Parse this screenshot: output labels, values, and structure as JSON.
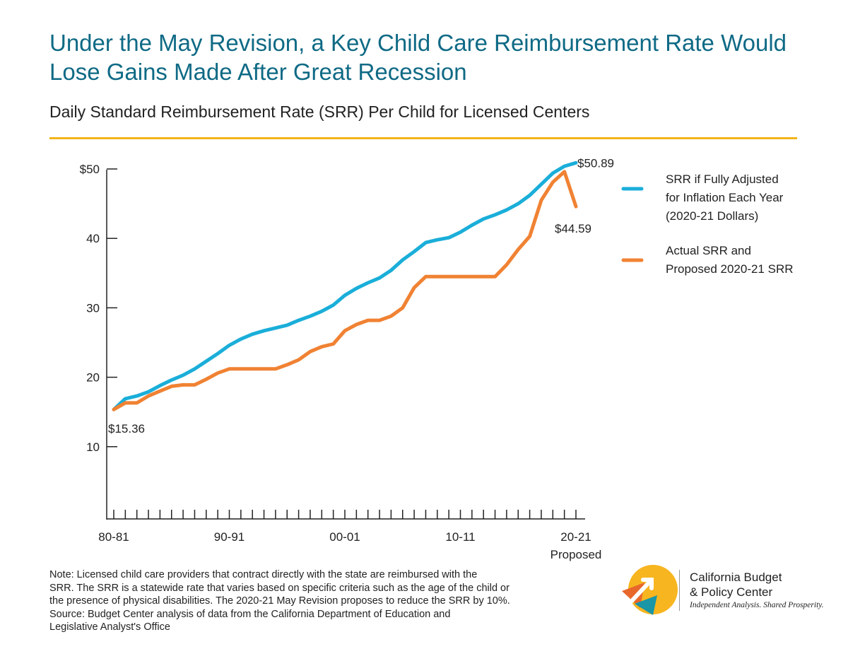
{
  "title": "Under the May Revision, a Key Child Care Reimbursement Rate Would Lose Gains Made After Great Recession",
  "subtitle": "Daily Standard Reimbursement Rate (SRR) Per Child for Licensed Centers",
  "colors": {
    "title": "#0f6a85",
    "rule": "#f3b51b",
    "inflation": "#1aaed9",
    "actual": "#f08233"
  },
  "chart_data": {
    "type": "line",
    "x_ticks": [
      "80-81",
      "90-91",
      "00-01",
      "10-11",
      "20-21"
    ],
    "x_tick_sublabel": "Proposed",
    "y_ticks": [
      "$50",
      "40",
      "30",
      "20",
      "10"
    ],
    "ylim": [
      0,
      52
    ],
    "x": [
      "80-81",
      "81-82",
      "82-83",
      "83-84",
      "84-85",
      "85-86",
      "86-87",
      "87-88",
      "88-89",
      "89-90",
      "90-91",
      "91-92",
      "92-93",
      "93-94",
      "94-95",
      "95-96",
      "96-97",
      "97-98",
      "98-99",
      "99-00",
      "00-01",
      "01-02",
      "02-03",
      "03-04",
      "04-05",
      "05-06",
      "06-07",
      "07-08",
      "08-09",
      "09-10",
      "10-11",
      "11-12",
      "12-13",
      "13-14",
      "14-15",
      "15-16",
      "16-17",
      "17-18",
      "18-19",
      "19-20",
      "20-21"
    ],
    "series": [
      {
        "name": "SRR if Fully Adjusted for Inflation Each Year (2020-21 Dollars)",
        "legend_lines": [
          "SRR if Fully Adjusted",
          "for Inflation Each Year",
          "(2020-21 Dollars)"
        ],
        "color": "#1aaed9",
        "values": [
          15.36,
          16.9,
          17.3,
          17.9,
          18.8,
          19.6,
          20.3,
          21.2,
          22.3,
          23.4,
          24.6,
          25.5,
          26.2,
          26.7,
          27.1,
          27.5,
          28.2,
          28.8,
          29.5,
          30.4,
          31.8,
          32.8,
          33.6,
          34.3,
          35.4,
          36.9,
          38.1,
          39.4,
          39.8,
          40.1,
          40.9,
          41.9,
          42.8,
          43.4,
          44.1,
          45.0,
          46.2,
          47.8,
          49.4,
          50.4,
          50.89
        ]
      },
      {
        "name": "Actual SRR and Proposed 2020-21 SRR",
        "legend_lines": [
          "Actual SRR and",
          "Proposed 2020-21 SRR"
        ],
        "color": "#f08233",
        "values": [
          15.36,
          16.3,
          16.3,
          17.3,
          18.0,
          18.7,
          18.9,
          18.9,
          19.7,
          20.6,
          21.2,
          21.2,
          21.2,
          21.2,
          21.2,
          21.8,
          22.5,
          23.7,
          24.4,
          24.8,
          26.7,
          27.6,
          28.2,
          28.2,
          28.8,
          30.0,
          32.9,
          34.5,
          34.5,
          34.5,
          34.5,
          34.5,
          34.5,
          34.5,
          36.2,
          38.4,
          40.3,
          45.5,
          48.1,
          49.6,
          44.59
        ]
      }
    ],
    "annotations": [
      "$15.36",
      "$50.89",
      "$44.59"
    ],
    "title": "Daily Standard Reimbursement Rate (SRR) Per Child for Licensed Centers"
  },
  "note_lines": [
    "Note: Licensed child care providers that contract directly with the state are reimbursed with the",
    "SRR. The SRR is a statewide rate that varies based on specific criteria such as the age of the child or",
    "the presence of physical disabilities. The 2020-21 May Revision proposes to reduce the SRR by 10%.",
    "Source: Budget Center analysis of data from the California Department of Education and",
    "Legislative Analyst's Office"
  ],
  "logo": {
    "line1": "California Budget",
    "line2": "& Policy Center",
    "tagline": "Independent Analysis. Shared Prosperity."
  }
}
